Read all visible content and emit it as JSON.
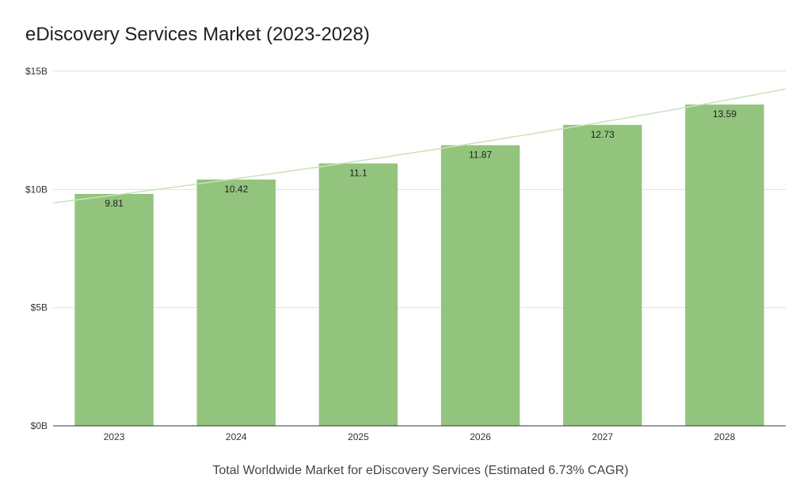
{
  "chart_data": {
    "type": "bar",
    "title": "eDiscovery Services Market (2023-2028)",
    "xlabel": "Total Worldwide Market for eDiscovery Services (Estimated 6.73% CAGR)",
    "ylabel": "",
    "categories": [
      "2023",
      "2024",
      "2025",
      "2026",
      "2027",
      "2028"
    ],
    "values": [
      9.81,
      10.42,
      11.1,
      11.87,
      12.73,
      13.59
    ],
    "data_labels": [
      "9.81",
      "10.42",
      "11.1",
      "11.87",
      "12.73",
      "13.59"
    ],
    "ylim": [
      0,
      15
    ],
    "yticks": [
      0,
      5,
      10,
      15
    ],
    "ytick_labels": [
      "$0B",
      "$5B",
      "$10B",
      "$15B"
    ],
    "trendline": {
      "type": "exponential",
      "start": 9.43,
      "end": 14.25
    },
    "grid": true,
    "legend": "none",
    "colors": {
      "bar": "#93c47d",
      "trendline": "#c9e3bd",
      "grid": "#e0e0e0",
      "axis": "#333333"
    }
  }
}
